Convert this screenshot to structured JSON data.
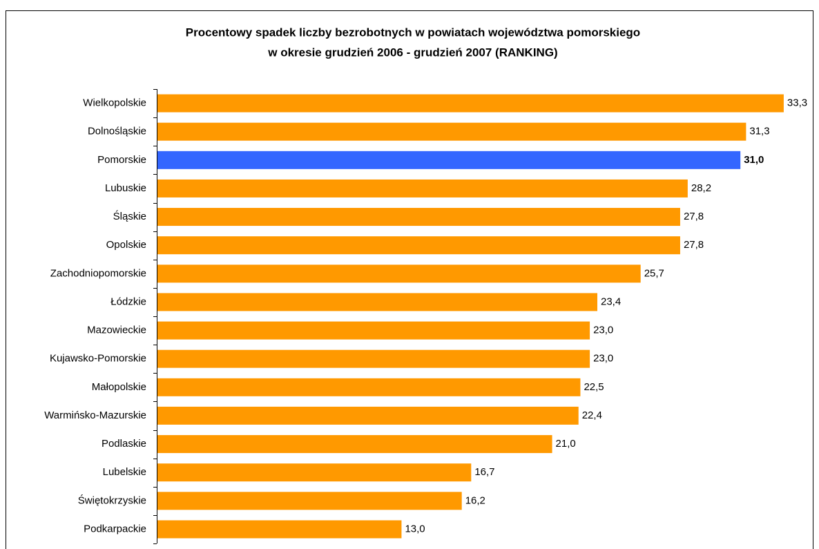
{
  "chart_data": {
    "type": "hbar",
    "title": [
      "Procentowy spadek liczby bezrobotnych w powiatach województwa pomorskiego",
      "w okresie grudzień 2006 - grudzień 2007 (RANKING)"
    ],
    "categories": [
      "Wielkopolskie",
      "Dolnośląskie",
      "Pomorskie",
      "Lubuskie",
      "Śląskie",
      "Opolskie",
      "Zachodniopomorskie",
      "Łódzkie",
      "Mazowieckie",
      "Kujawsko-Pomorskie",
      "Małopolskie",
      "Warmińsko-Mazurskie",
      "Podlaskie",
      "Lubelskie",
      "Świętokrzyskie",
      "Podkarpackie"
    ],
    "values": [
      33.3,
      31.3,
      31.0,
      28.2,
      27.8,
      27.8,
      25.7,
      23.4,
      23.0,
      23.0,
      22.5,
      22.4,
      21.0,
      16.7,
      16.2,
      13.0
    ],
    "value_labels": [
      "33,3",
      "31,3",
      "31,0",
      "28,2",
      "27,8",
      "27,8",
      "25,7",
      "23,4",
      "23,0",
      "23,0",
      "22,5",
      "22,4",
      "21,0",
      "16,7",
      "16,2",
      "13,0"
    ],
    "colors": [
      "#ff9900",
      "#ff9900",
      "#3366ff",
      "#ff9900",
      "#ff9900",
      "#ff9900",
      "#ff9900",
      "#ff9900",
      "#ff9900",
      "#ff9900",
      "#ff9900",
      "#ff9900",
      "#ff9900",
      "#ff9900",
      "#ff9900",
      "#ff9900"
    ],
    "highlight_color": "#3366ff",
    "xlim": [
      0,
      34
    ]
  }
}
